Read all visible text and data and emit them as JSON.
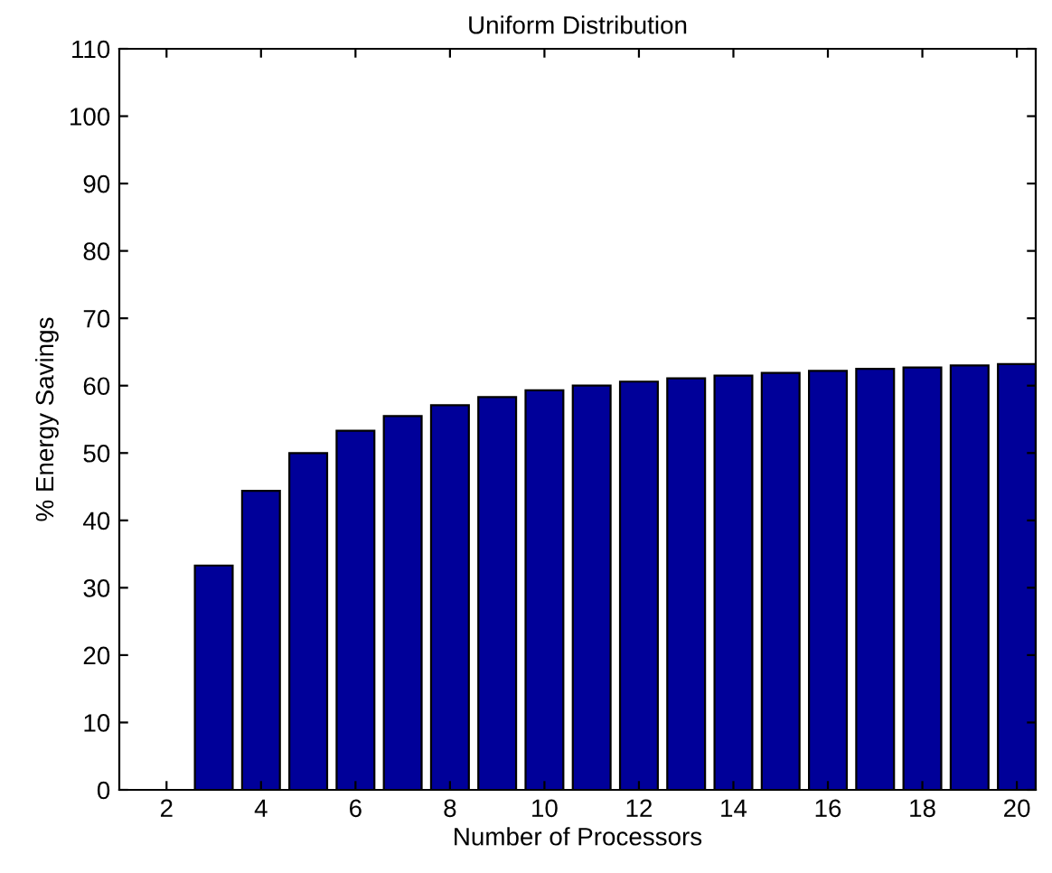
{
  "chart_data": {
    "type": "bar",
    "title": "Uniform Distribution",
    "xlabel": "Number of Processors",
    "ylabel": "% Energy Savings",
    "x": [
      2,
      3,
      4,
      5,
      6,
      7,
      8,
      9,
      10,
      11,
      12,
      13,
      14,
      15,
      16,
      17,
      18,
      19,
      20
    ],
    "values": [
      0,
      33.3,
      44.4,
      50,
      53.3,
      55.5,
      57.1,
      58.3,
      59.3,
      60,
      60.6,
      61.1,
      61.5,
      61.9,
      62.2,
      62.5,
      62.7,
      63,
      63.2
    ],
    "color": "#000099",
    "xlim": [
      1,
      20.4
    ],
    "xticks": [
      2,
      4,
      6,
      8,
      10,
      12,
      14,
      16,
      18,
      20
    ],
    "ylim": [
      0,
      110
    ],
    "yticks": [
      0,
      10,
      20,
      30,
      40,
      50,
      60,
      70,
      80,
      90,
      100,
      110
    ],
    "grid": false,
    "legend": false
  }
}
